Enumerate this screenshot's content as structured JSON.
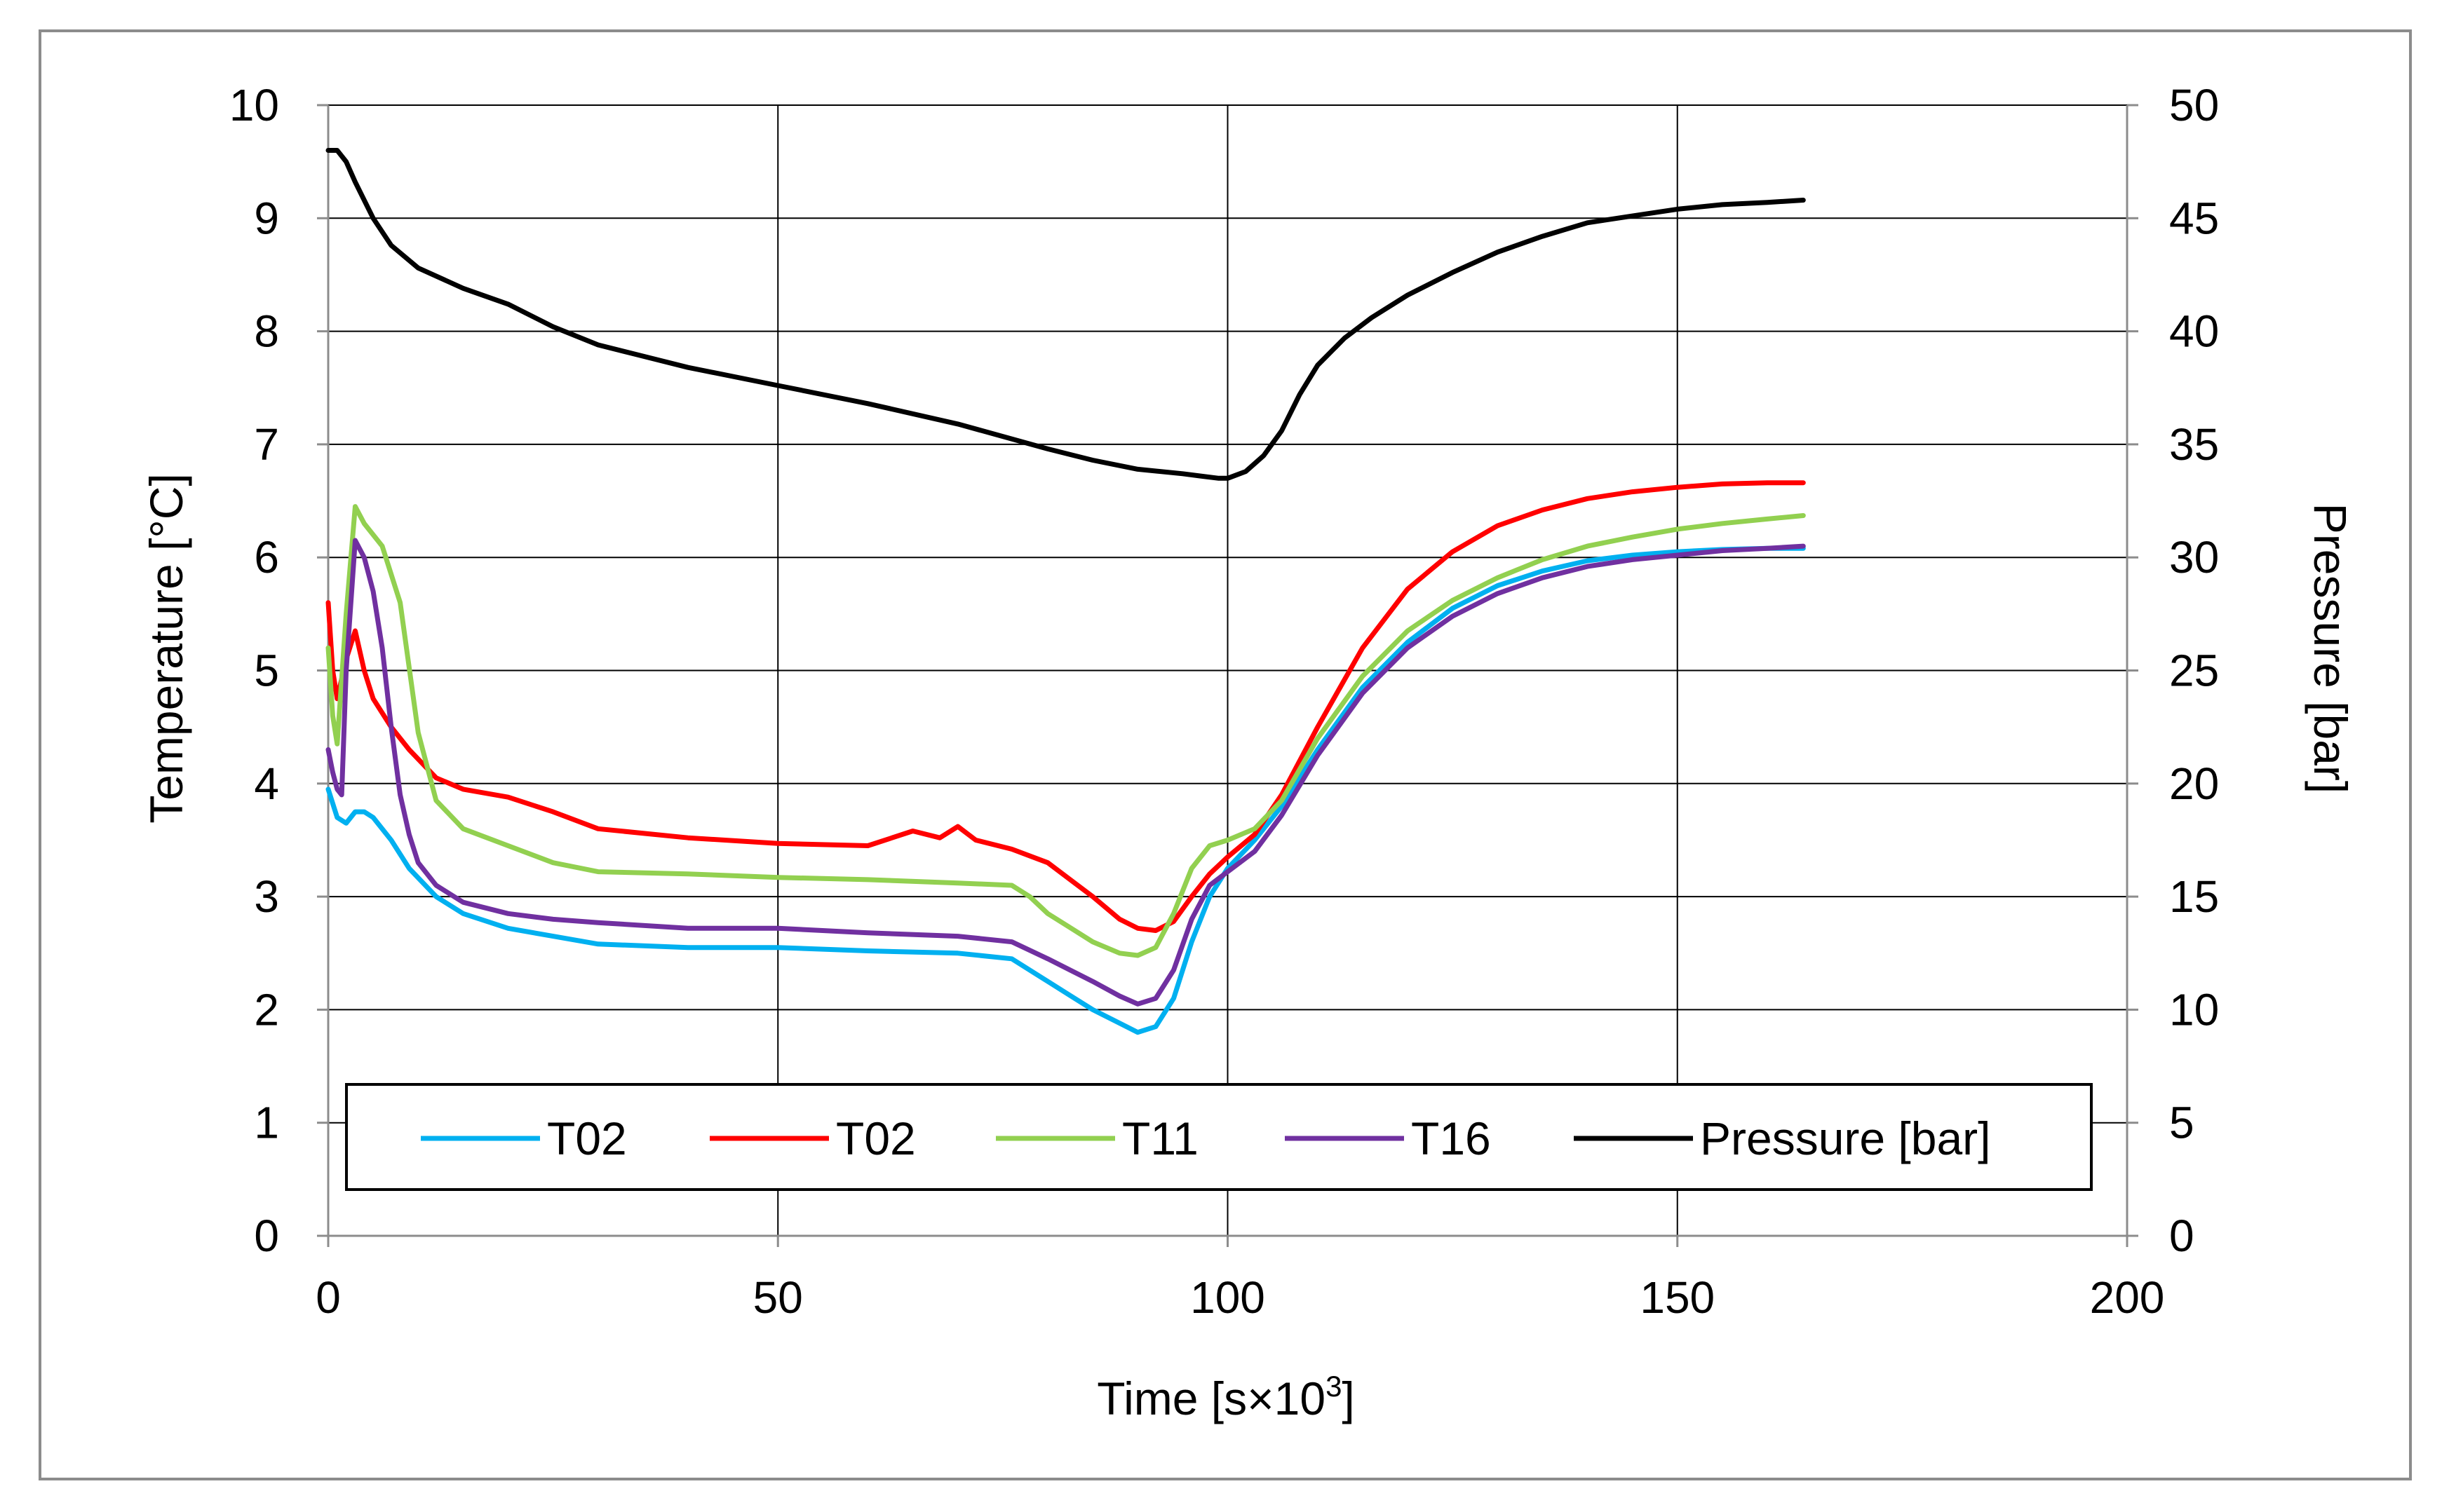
{
  "chart_data": {
    "type": "line",
    "xlabel": "Time [s×10",
    "xlabel_sup": "3",
    "xlabel_end": "]",
    "ylabel": "Temperature [°C]",
    "y2label": "Pressure [bar]",
    "xlim": [
      0,
      200
    ],
    "ylim": [
      0,
      10
    ],
    "y2lim": [
      0,
      50
    ],
    "xticks": [
      "0",
      "50",
      "100",
      "150",
      "200"
    ],
    "yticks": [
      "0",
      "1",
      "2",
      "3",
      "4",
      "5",
      "6",
      "7",
      "8",
      "9",
      "10"
    ],
    "y2ticks": [
      "0",
      "5",
      "10",
      "15",
      "20",
      "25",
      "30",
      "35",
      "40",
      "45",
      "50"
    ],
    "grid": true,
    "legend_position": "bottom-inside",
    "series": [
      {
        "name": "T02",
        "color": "#00b0f0",
        "axis": "left",
        "x": [
          0,
          1,
          2,
          3,
          4,
          5,
          7,
          9,
          12,
          15,
          20,
          25,
          30,
          40,
          50,
          60,
          70,
          76,
          80,
          85,
          88,
          90,
          92,
          94,
          96,
          98,
          100,
          103,
          106,
          110,
          115,
          120,
          125,
          130,
          135,
          140,
          145,
          150,
          155,
          160,
          164
        ],
        "y": [
          3.95,
          3.7,
          3.65,
          3.75,
          3.75,
          3.7,
          3.5,
          3.25,
          3.0,
          2.85,
          2.72,
          2.65,
          2.58,
          2.55,
          2.55,
          2.52,
          2.5,
          2.45,
          2.25,
          2.0,
          1.88,
          1.8,
          1.85,
          2.1,
          2.6,
          3.0,
          3.25,
          3.5,
          3.8,
          4.3,
          4.85,
          5.25,
          5.55,
          5.75,
          5.88,
          5.97,
          6.02,
          6.05,
          6.07,
          6.08,
          6.08
        ]
      },
      {
        "name": "T02",
        "color": "#ff0000",
        "axis": "left",
        "x": [
          0,
          0.5,
          1,
          2,
          3,
          4,
          5,
          7,
          9,
          12,
          15,
          20,
          25,
          30,
          40,
          50,
          60,
          65,
          68,
          70,
          72,
          76,
          80,
          85,
          88,
          90,
          92,
          94,
          96,
          98,
          100,
          103,
          106,
          110,
          115,
          120,
          125,
          130,
          135,
          140,
          145,
          150,
          155,
          160,
          164
        ],
        "y": [
          5.6,
          5.0,
          4.75,
          5.1,
          5.35,
          5.0,
          4.75,
          4.5,
          4.3,
          4.05,
          3.95,
          3.88,
          3.75,
          3.6,
          3.52,
          3.47,
          3.45,
          3.58,
          3.52,
          3.62,
          3.5,
          3.42,
          3.3,
          3.0,
          2.8,
          2.72,
          2.7,
          2.78,
          3.0,
          3.2,
          3.35,
          3.55,
          3.9,
          4.5,
          5.2,
          5.72,
          6.05,
          6.28,
          6.42,
          6.52,
          6.58,
          6.62,
          6.65,
          6.66,
          6.66
        ]
      },
      {
        "name": "T11",
        "color": "#92d050",
        "axis": "left",
        "x": [
          0,
          0.5,
          1,
          2,
          3,
          4,
          6,
          8,
          10,
          12,
          15,
          20,
          25,
          30,
          40,
          50,
          60,
          70,
          76,
          78,
          80,
          85,
          88,
          90,
          92,
          94,
          96,
          98,
          100,
          103,
          106,
          110,
          115,
          120,
          125,
          130,
          135,
          140,
          145,
          150,
          155,
          160,
          164
        ],
        "y": [
          5.2,
          4.6,
          4.35,
          5.5,
          6.45,
          6.3,
          6.1,
          5.6,
          4.45,
          3.85,
          3.6,
          3.45,
          3.3,
          3.22,
          3.2,
          3.17,
          3.15,
          3.12,
          3.1,
          3.0,
          2.85,
          2.6,
          2.5,
          2.48,
          2.55,
          2.85,
          3.25,
          3.45,
          3.5,
          3.6,
          3.85,
          4.4,
          4.95,
          5.35,
          5.62,
          5.82,
          5.98,
          6.1,
          6.18,
          6.25,
          6.3,
          6.34,
          6.37
        ]
      },
      {
        "name": "T16",
        "color": "#7030a0",
        "axis": "left",
        "x": [
          0,
          0.5,
          1,
          1.5,
          2,
          3,
          4,
          5,
          6,
          7,
          8,
          9,
          10,
          12,
          15,
          20,
          25,
          30,
          40,
          50,
          60,
          70,
          76,
          80,
          85,
          88,
          90,
          92,
          94,
          96,
          98,
          100,
          103,
          106,
          110,
          115,
          120,
          125,
          130,
          135,
          140,
          145,
          150,
          155,
          160,
          164
        ],
        "y": [
          4.3,
          4.1,
          3.95,
          3.9,
          5.0,
          6.15,
          6.0,
          5.7,
          5.2,
          4.5,
          3.9,
          3.55,
          3.3,
          3.1,
          2.95,
          2.85,
          2.8,
          2.77,
          2.72,
          2.72,
          2.68,
          2.65,
          2.6,
          2.45,
          2.25,
          2.12,
          2.05,
          2.1,
          2.35,
          2.8,
          3.1,
          3.22,
          3.4,
          3.72,
          4.25,
          4.8,
          5.2,
          5.48,
          5.68,
          5.82,
          5.92,
          5.98,
          6.02,
          6.06,
          6.08,
          6.1
        ]
      },
      {
        "name": "Pressure [bar]",
        "color": "#000000",
        "axis": "right",
        "x": [
          0,
          1,
          2,
          3,
          5,
          7,
          10,
          15,
          20,
          25,
          30,
          40,
          50,
          60,
          70,
          80,
          85,
          90,
          95,
          97,
          99,
          100,
          102,
          104,
          106,
          108,
          110,
          113,
          116,
          120,
          125,
          130,
          135,
          140,
          145,
          150,
          155,
          160,
          164
        ],
        "y": [
          48.0,
          48.0,
          47.5,
          46.6,
          45.0,
          43.8,
          42.8,
          41.9,
          41.2,
          40.2,
          39.4,
          38.4,
          37.6,
          36.8,
          35.9,
          34.8,
          34.3,
          33.9,
          33.7,
          33.6,
          33.5,
          33.5,
          33.8,
          34.5,
          35.6,
          37.2,
          38.5,
          39.7,
          40.6,
          41.6,
          42.6,
          43.5,
          44.2,
          44.8,
          45.1,
          45.4,
          45.6,
          45.7,
          45.8
        ]
      }
    ]
  }
}
